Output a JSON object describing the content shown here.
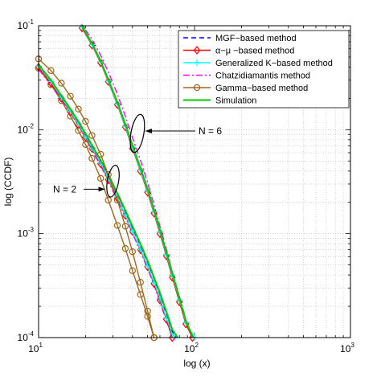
{
  "chart_data": {
    "type": "line",
    "title": "",
    "xlabel": "log (x)",
    "ylabel": "log (CCDF)",
    "xscale": "log",
    "yscale": "log",
    "xlim": [
      10,
      1000
    ],
    "ylim": [
      0.0001,
      0.1
    ],
    "grid": "dotted",
    "legend_position": "top-right",
    "x_tick_labels": [
      {
        "base": "10",
        "exp": "1"
      },
      {
        "base": "10",
        "exp": "2"
      },
      {
        "base": "10",
        "exp": "3"
      }
    ],
    "y_tick_labels": [
      {
        "base": "10",
        "exp": "-4"
      },
      {
        "base": "10",
        "exp": "-3"
      },
      {
        "base": "10",
        "exp": "-2"
      },
      {
        "base": "10",
        "exp": "-1"
      }
    ],
    "legend": [
      {
        "label": "MGF−based method",
        "color": "#0000ff",
        "dash": "6,4",
        "marker": "none"
      },
      {
        "label": "α−μ −based method",
        "color": "#ff0000",
        "dash": "",
        "marker": "diamond"
      },
      {
        "label": "Generalized K−based method",
        "color": "#00ffff",
        "dash": "",
        "marker": "plus"
      },
      {
        "label": "Chatzidiamantis method",
        "color": "#ff00ff",
        "dash": "8,3,2,3",
        "marker": "none"
      },
      {
        "label": "Gamma−based method",
        "color": "#a0661a",
        "dash": "",
        "marker": "circle"
      },
      {
        "label": "Simulation",
        "color": "#00cc00",
        "dash": "",
        "marker": "none"
      }
    ],
    "series": [
      {
        "group": "N = 2",
        "style": 4,
        "points": [
          [
            10,
            0.039
          ],
          [
            12,
            0.027
          ],
          [
            14,
            0.019
          ],
          [
            16,
            0.0135
          ],
          [
            18,
            0.0098
          ],
          [
            20,
            0.0072
          ],
          [
            22,
            0.0053
          ],
          [
            25,
            0.0034
          ],
          [
            28,
            0.0021
          ],
          [
            32,
            0.0012
          ],
          [
            36,
            0.00072
          ],
          [
            40,
            0.00044
          ],
          [
            45,
            0.00026
          ],
          [
            50,
            0.00016
          ],
          [
            55,
            0.0001
          ]
        ]
      },
      {
        "group": "N = 2",
        "style": 3,
        "points": [
          [
            10,
            0.038
          ],
          [
            12,
            0.027
          ],
          [
            14,
            0.0195
          ],
          [
            16,
            0.0145
          ],
          [
            18,
            0.011
          ],
          [
            20,
            0.0083
          ],
          [
            22,
            0.0064
          ],
          [
            25,
            0.0045
          ],
          [
            28,
            0.0032
          ],
          [
            32,
            0.0021
          ],
          [
            36,
            0.00145
          ],
          [
            40,
            0.00101
          ],
          [
            45,
            0.00067
          ],
          [
            50,
            0.00046
          ],
          [
            55,
            0.00032
          ],
          [
            60,
            0.00022
          ],
          [
            66,
            0.000145
          ],
          [
            72,
            0.0001
          ]
        ]
      },
      {
        "group": "N = 2",
        "style": 1,
        "points": [
          [
            10,
            0.04
          ],
          [
            12,
            0.028
          ],
          [
            14,
            0.02
          ],
          [
            16,
            0.0148
          ],
          [
            18,
            0.0112
          ],
          [
            20,
            0.0085
          ],
          [
            22,
            0.0066
          ],
          [
            25,
            0.0047
          ],
          [
            28,
            0.0033
          ],
          [
            32,
            0.0022
          ],
          [
            36,
            0.0015
          ],
          [
            40,
            0.00105
          ],
          [
            45,
            0.0007
          ],
          [
            50,
            0.00048
          ],
          [
            55,
            0.00033
          ],
          [
            60,
            0.00023
          ],
          [
            66,
            0.00015
          ],
          [
            72,
            0.0001
          ]
        ]
      },
      {
        "group": "N = 2",
        "style": 2,
        "points": [
          [
            10,
            0.041
          ],
          [
            12,
            0.029
          ],
          [
            14,
            0.0205
          ],
          [
            16,
            0.0151
          ],
          [
            18,
            0.0114
          ],
          [
            20,
            0.0087
          ],
          [
            22,
            0.0067
          ],
          [
            25,
            0.0048
          ],
          [
            28,
            0.0034
          ],
          [
            32,
            0.00225
          ],
          [
            36,
            0.00152
          ],
          [
            40,
            0.00106
          ],
          [
            45,
            0.00071
          ],
          [
            50,
            0.00049
          ],
          [
            55,
            0.00034
          ],
          [
            60,
            0.00024
          ],
          [
            66,
            0.000155
          ],
          [
            72,
            0.00011
          ],
          [
            75,
            0.0001
          ]
        ]
      },
      {
        "group": "N = 2",
        "style": 0,
        "points": [
          [
            10,
            0.042
          ],
          [
            12,
            0.03
          ],
          [
            14,
            0.021
          ],
          [
            16,
            0.0156
          ],
          [
            18,
            0.0118
          ],
          [
            20,
            0.009
          ],
          [
            22,
            0.0069
          ],
          [
            25,
            0.005
          ],
          [
            28,
            0.0036
          ],
          [
            32,
            0.0024
          ],
          [
            36,
            0.00163
          ],
          [
            40,
            0.00114
          ],
          [
            45,
            0.00077
          ],
          [
            50,
            0.00053
          ],
          [
            55,
            0.00037
          ],
          [
            60,
            0.00026
          ],
          [
            66,
            0.00017
          ],
          [
            72,
            0.000115
          ],
          [
            76,
            0.0001
          ]
        ]
      },
      {
        "group": "N = 2",
        "style": 5,
        "points": [
          [
            10,
            0.042
          ],
          [
            12,
            0.03
          ],
          [
            14,
            0.0213
          ],
          [
            16,
            0.0158
          ],
          [
            18,
            0.012
          ],
          [
            20,
            0.0092
          ],
          [
            22,
            0.0071
          ],
          [
            25,
            0.0051
          ],
          [
            28,
            0.0037
          ],
          [
            32,
            0.00245
          ],
          [
            36,
            0.00168
          ],
          [
            40,
            0.00118
          ],
          [
            45,
            0.0008
          ],
          [
            50,
            0.00055
          ],
          [
            55,
            0.00038
          ],
          [
            60,
            0.00027
          ],
          [
            66,
            0.000178
          ],
          [
            72,
            0.00012
          ],
          [
            78,
            0.0001
          ]
        ]
      },
      {
        "group": "N = 6",
        "style": 4,
        "points": [
          [
            10,
            0.048
          ],
          [
            12,
            0.037
          ],
          [
            14,
            0.028
          ],
          [
            16,
            0.021
          ],
          [
            18,
            0.0158
          ],
          [
            20,
            0.012
          ],
          [
            22,
            0.0088
          ],
          [
            25,
            0.0058
          ],
          [
            28,
            0.0037
          ],
          [
            32,
            0.0021
          ],
          [
            36,
            0.00118
          ],
          [
            40,
            0.00067
          ],
          [
            45,
            0.00034
          ],
          [
            50,
            0.00018
          ],
          [
            55,
            0.0001
          ]
        ]
      },
      {
        "group": "N = 6",
        "style": 3,
        "points": [
          [
            20,
            0.091
          ],
          [
            22,
            0.074
          ],
          [
            25,
            0.052
          ],
          [
            28,
            0.036
          ],
          [
            32,
            0.022
          ],
          [
            36,
            0.0135
          ],
          [
            40,
            0.0084
          ],
          [
            45,
            0.0051
          ],
          [
            50,
            0.0031
          ],
          [
            55,
            0.0019
          ],
          [
            60,
            0.00118
          ],
          [
            66,
            0.00071
          ],
          [
            72,
            0.00043
          ],
          [
            80,
            0.00025
          ],
          [
            88,
            0.00015
          ],
          [
            96,
            0.0001
          ]
        ]
      },
      {
        "group": "N = 6",
        "style": 1,
        "points": [
          [
            19,
            0.095
          ],
          [
            22,
            0.065
          ],
          [
            25,
            0.044
          ],
          [
            28,
            0.029
          ],
          [
            32,
            0.0174
          ],
          [
            36,
            0.0106
          ],
          [
            40,
            0.0066
          ],
          [
            45,
            0.004
          ],
          [
            50,
            0.0025
          ],
          [
            55,
            0.00157
          ],
          [
            60,
            0.001
          ],
          [
            66,
            0.00061
          ],
          [
            72,
            0.00038
          ],
          [
            80,
            0.00022
          ],
          [
            88,
            0.000135
          ],
          [
            97,
            0.0001
          ]
        ]
      },
      {
        "group": "N = 6",
        "style": 2,
        "points": [
          [
            19,
            0.097
          ],
          [
            22,
            0.066
          ],
          [
            25,
            0.045
          ],
          [
            28,
            0.0295
          ],
          [
            32,
            0.0177
          ],
          [
            36,
            0.0108
          ],
          [
            40,
            0.0068
          ],
          [
            45,
            0.0041
          ],
          [
            50,
            0.0026
          ],
          [
            55,
            0.00162
          ],
          [
            60,
            0.00104
          ],
          [
            66,
            0.00063
          ],
          [
            72,
            0.0004
          ],
          [
            80,
            0.00023
          ],
          [
            88,
            0.00014
          ],
          [
            100,
            0.0001
          ]
        ]
      },
      {
        "group": "N = 6",
        "style": 0,
        "points": [
          [
            19,
            0.098
          ],
          [
            22,
            0.068
          ],
          [
            25,
            0.046
          ],
          [
            28,
            0.0305
          ],
          [
            32,
            0.0184
          ],
          [
            36,
            0.0113
          ],
          [
            40,
            0.0071
          ],
          [
            45,
            0.0043
          ],
          [
            50,
            0.0027
          ],
          [
            55,
            0.0017
          ],
          [
            60,
            0.00109
          ],
          [
            66,
            0.00066
          ],
          [
            72,
            0.00042
          ],
          [
            80,
            0.00024
          ],
          [
            88,
            0.000145
          ],
          [
            98,
            0.0001
          ]
        ]
      },
      {
        "group": "N = 6",
        "style": 5,
        "points": [
          [
            19,
            0.098
          ],
          [
            22,
            0.068
          ],
          [
            25,
            0.046
          ],
          [
            28,
            0.0305
          ],
          [
            32,
            0.0184
          ],
          [
            36,
            0.0113
          ],
          [
            40,
            0.0071
          ],
          [
            45,
            0.0043
          ],
          [
            50,
            0.0027
          ],
          [
            55,
            0.0017
          ],
          [
            60,
            0.00109
          ],
          [
            66,
            0.00066
          ],
          [
            72,
            0.00042
          ],
          [
            80,
            0.00024
          ],
          [
            88,
            0.000145
          ],
          [
            98,
            0.0001
          ]
        ]
      }
    ],
    "annotations": [
      {
        "text": "N = 6",
        "ellipse_center": [
          43,
          0.0092
        ]
      },
      {
        "text": "N = 2",
        "ellipse_center": [
          30,
          0.0032
        ]
      }
    ]
  }
}
